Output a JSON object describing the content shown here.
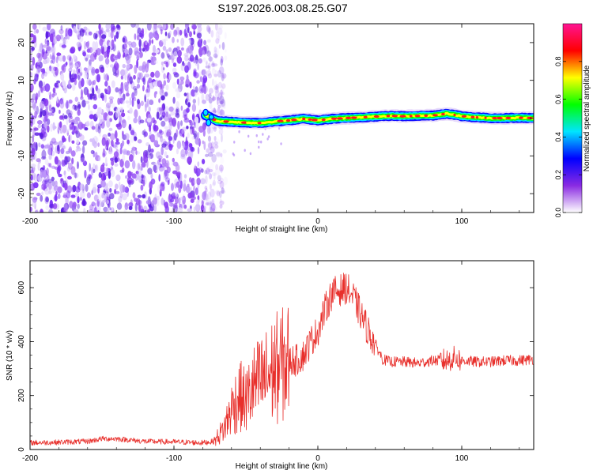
{
  "title": "S197.2026.003.08.25.G07",
  "colors": {
    "snr_line": "#e8302c",
    "axis": "#000000",
    "background": "#ffffff",
    "colorbar_stops": [
      "#ffffff",
      "#8a2be2",
      "#0000ff",
      "#00e5ff",
      "#00ff00",
      "#ffff00",
      "#ff0000",
      "#ff1493"
    ]
  },
  "chart_data": [
    {
      "type": "heatmap",
      "name": "spectrogram",
      "xlabel": "Height of straight line (km)",
      "ylabel": "Frequency (Hz)",
      "xlim": [
        -200,
        150
      ],
      "ylim": [
        -25,
        25
      ],
      "xticks": [
        -200,
        -100,
        0,
        100
      ],
      "yticks": [
        -20,
        -10,
        0,
        10,
        20
      ],
      "colorbar": {
        "label": "Normalized spectral amplitude",
        "range": [
          0,
          1
        ],
        "ticks": [
          0.0,
          0.2,
          0.4,
          0.6,
          0.8
        ]
      },
      "noise_region_x": [
        -200,
        -70
      ],
      "signal_onset_x": -78,
      "ridge_track": {
        "x": [
          -78,
          -70,
          -60,
          -50,
          -40,
          -30,
          -20,
          -10,
          0,
          10,
          20,
          30,
          40,
          50,
          60,
          70,
          80,
          90,
          100,
          110,
          120,
          130,
          140,
          150
        ],
        "frequency": [
          0.8,
          -0.8,
          -1.0,
          -1.2,
          -1.3,
          -0.9,
          -0.6,
          -0.2,
          -0.6,
          -0.2,
          0.0,
          0.2,
          0.4,
          0.6,
          0.5,
          0.6,
          0.7,
          1.2,
          0.5,
          0.2,
          0.0,
          0.0,
          0.1,
          0.0
        ]
      }
    },
    {
      "type": "line",
      "name": "snr",
      "xlabel": "Height of straight line (km)",
      "ylabel": "SNR (10 * v/v)",
      "xlim": [
        -200,
        150
      ],
      "ylim": [
        0,
        700
      ],
      "xticks": [
        -200,
        -100,
        0,
        100
      ],
      "yticks": [
        0,
        200,
        400,
        600
      ],
      "series": [
        {
          "name": "SNR",
          "x": [
            -200,
            -180,
            -160,
            -150,
            -140,
            -120,
            -100,
            -80,
            -72,
            -65,
            -60,
            -55,
            -50,
            -45,
            -40,
            -35,
            -30,
            -25,
            -20,
            -15,
            -10,
            -5,
            0,
            5,
            10,
            15,
            20,
            25,
            30,
            35,
            40,
            45,
            50,
            60,
            70,
            80,
            90,
            95,
            100,
            110,
            120,
            130,
            140,
            150
          ],
          "values": [
            25,
            27,
            30,
            40,
            40,
            30,
            28,
            25,
            30,
            80,
            150,
            200,
            180,
            230,
            250,
            270,
            300,
            310,
            330,
            330,
            350,
            400,
            440,
            520,
            580,
            590,
            600,
            560,
            500,
            440,
            390,
            335,
            325,
            325,
            320,
            330,
            330,
            340,
            330,
            325,
            325,
            330,
            330,
            335
          ]
        }
      ]
    }
  ]
}
